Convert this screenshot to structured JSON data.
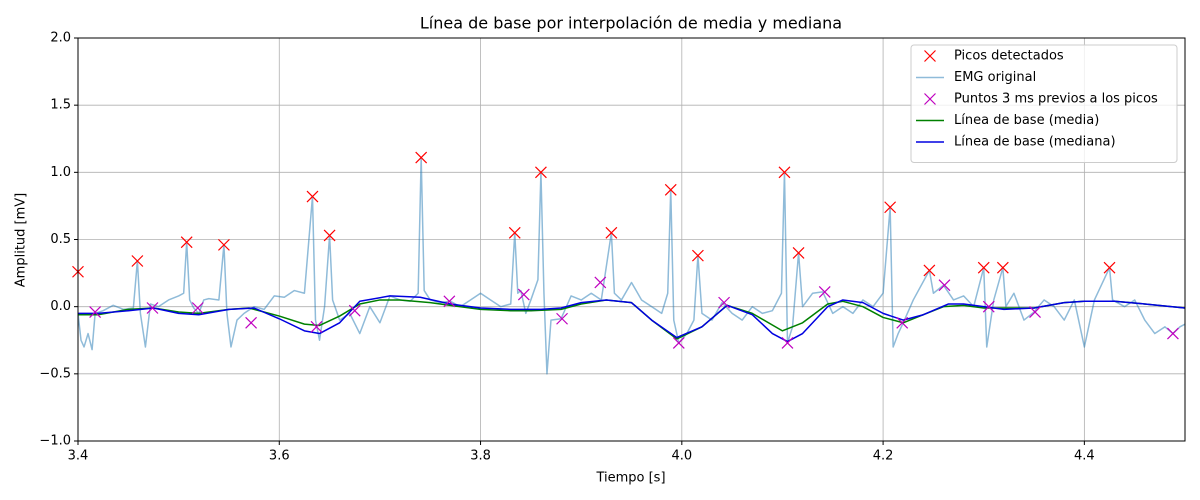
{
  "chart_data": {
    "type": "line",
    "title": "Línea de base por interpolación de media y mediana",
    "xlabel": "Tiempo [s]",
    "ylabel": "Amplitud [mV]",
    "xlim": [
      3.4,
      4.5
    ],
    "ylim": [
      -1.0,
      2.0
    ],
    "xticks": [
      3.4,
      3.6,
      3.8,
      {
        "value": 4.0,
        "label": "4.0"
      },
      4.2,
      4.4
    ],
    "yticks": [
      {
        "value": -1.0,
        "label": "−1.0"
      },
      {
        "value": -0.5,
        "label": "−0.5"
      },
      {
        "value": 0.0,
        "label": "0.0"
      },
      0.5,
      {
        "value": 1.0,
        "label": "1.0"
      },
      1.5,
      {
        "value": 2.0,
        "label": "2.0"
      }
    ],
    "grid": true,
    "legend": "upper right",
    "series": [
      {
        "name": "Picos detectados",
        "color": "#ff0000",
        "marker": "x",
        "linestyle": "none",
        "x": [
          3.4,
          3.459,
          3.508,
          3.545,
          3.633,
          3.65,
          3.741,
          3.834,
          3.86,
          3.93,
          3.989,
          4.016,
          4.102,
          4.116,
          4.207,
          4.246,
          4.3,
          4.319,
          4.425
        ],
        "values": [
          0.26,
          0.34,
          0.48,
          0.46,
          0.82,
          0.53,
          1.11,
          0.55,
          1.0,
          0.55,
          0.87,
          0.38,
          1.0,
          0.4,
          0.74,
          0.27,
          0.29,
          0.29,
          0.29
        ]
      },
      {
        "name": "EMG original",
        "color": "#1f77b4",
        "alpha": 0.5,
        "marker": "none",
        "linestyle": "solid",
        "x": [
          3.4,
          3.403,
          3.406,
          3.41,
          3.414,
          3.417,
          3.425,
          3.435,
          3.445,
          3.455,
          3.459,
          3.462,
          3.467,
          3.472,
          3.48,
          3.49,
          3.5,
          3.505,
          3.508,
          3.511,
          3.515,
          3.52,
          3.525,
          3.53,
          3.54,
          3.545,
          3.548,
          3.552,
          3.558,
          3.565,
          3.575,
          3.585,
          3.595,
          3.605,
          3.615,
          3.625,
          3.633,
          3.636,
          3.64,
          3.645,
          3.65,
          3.653,
          3.66,
          3.67,
          3.68,
          3.69,
          3.7,
          3.71,
          3.72,
          3.73,
          3.738,
          3.741,
          3.744,
          3.75,
          3.76,
          3.77,
          3.78,
          3.79,
          3.8,
          3.81,
          3.82,
          3.83,
          3.834,
          3.837,
          3.84,
          3.845,
          3.85,
          3.857,
          3.86,
          3.863,
          3.866,
          3.87,
          3.88,
          3.89,
          3.9,
          3.91,
          3.92,
          3.93,
          3.933,
          3.94,
          3.95,
          3.96,
          3.97,
          3.98,
          3.986,
          3.989,
          3.992,
          3.997,
          4.005,
          4.012,
          4.016,
          4.02,
          4.03,
          4.04,
          4.05,
          4.06,
          4.07,
          4.08,
          4.09,
          4.099,
          4.102,
          4.105,
          4.11,
          4.116,
          4.12,
          4.13,
          4.14,
          4.15,
          4.16,
          4.17,
          4.18,
          4.19,
          4.2,
          4.207,
          4.21,
          4.215,
          4.22,
          4.23,
          4.246,
          4.25,
          4.26,
          4.27,
          4.28,
          4.29,
          4.3,
          4.303,
          4.31,
          4.319,
          4.322,
          4.33,
          4.34,
          4.35,
          4.36,
          4.37,
          4.38,
          4.39,
          4.4,
          4.41,
          4.425,
          4.428,
          4.44,
          4.45,
          4.46,
          4.47,
          4.48,
          4.488,
          4.495,
          4.5
        ],
        "values": [
          -0.05,
          -0.25,
          -0.3,
          -0.2,
          -0.32,
          -0.05,
          -0.03,
          0.01,
          -0.02,
          -0.01,
          0.34,
          -0.05,
          -0.3,
          0.02,
          0.0,
          0.05,
          0.08,
          0.1,
          0.48,
          0.05,
          -0.01,
          -0.05,
          0.05,
          0.06,
          0.05,
          0.46,
          -0.05,
          -0.3,
          -0.1,
          -0.05,
          0.0,
          -0.02,
          0.08,
          0.07,
          0.12,
          0.1,
          0.82,
          -0.1,
          -0.25,
          0.0,
          0.53,
          0.05,
          -0.1,
          -0.05,
          -0.2,
          0.0,
          -0.12,
          0.08,
          0.05,
          0.04,
          0.1,
          1.11,
          0.12,
          0.05,
          0.03,
          0.04,
          0.0,
          0.05,
          0.1,
          0.05,
          0.0,
          0.02,
          0.55,
          0.1,
          0.12,
          -0.05,
          0.05,
          0.2,
          1.0,
          0.1,
          -0.5,
          -0.1,
          -0.09,
          0.08,
          0.05,
          0.1,
          0.05,
          0.55,
          0.1,
          0.05,
          0.18,
          0.05,
          0.0,
          -0.05,
          0.1,
          0.87,
          -0.1,
          -0.27,
          -0.2,
          -0.1,
          0.38,
          -0.05,
          -0.1,
          0.03,
          -0.05,
          -0.1,
          0.0,
          -0.05,
          -0.03,
          0.1,
          1.0,
          -0.27,
          -0.15,
          0.4,
          0.0,
          0.1,
          0.11,
          -0.05,
          0.0,
          -0.05,
          0.05,
          0.0,
          0.1,
          0.74,
          -0.3,
          -0.2,
          -0.12,
          0.05,
          0.27,
          0.1,
          0.16,
          0.05,
          0.08,
          0.0,
          0.29,
          -0.3,
          0.05,
          0.29,
          0.0,
          0.1,
          -0.1,
          -0.04,
          0.05,
          0.0,
          -0.1,
          0.05,
          -0.3,
          0.05,
          0.29,
          0.05,
          0.0,
          0.05,
          -0.1,
          -0.2,
          -0.15,
          -0.2,
          -0.15,
          -0.13
        ]
      },
      {
        "name": "Puntos 3 ms previos a los picos",
        "color": "#bf00bf",
        "marker": "x",
        "linestyle": "none",
        "x": [
          3.417,
          3.474,
          3.519,
          3.572,
          3.637,
          3.675,
          3.769,
          3.843,
          3.881,
          3.919,
          3.997,
          4.042,
          4.105,
          4.142,
          4.219,
          4.261,
          4.305,
          4.351,
          4.488
        ],
        "values": [
          -0.04,
          -0.01,
          -0.01,
          -0.12,
          -0.15,
          -0.03,
          0.04,
          0.09,
          -0.09,
          0.18,
          -0.27,
          0.03,
          -0.27,
          0.11,
          -0.12,
          0.16,
          0.0,
          -0.04,
          -0.2
        ]
      },
      {
        "name": "Línea de base (media)",
        "color": "#008000",
        "marker": "none",
        "linestyle": "solid",
        "x": [
          3.4,
          3.42,
          3.45,
          3.475,
          3.5,
          3.52,
          3.55,
          3.57,
          3.6,
          3.625,
          3.64,
          3.66,
          3.68,
          3.7,
          3.72,
          3.75,
          3.77,
          3.8,
          3.83,
          3.85,
          3.88,
          3.9,
          3.925,
          3.95,
          3.97,
          3.995,
          4.02,
          4.045,
          4.07,
          4.1,
          4.12,
          4.145,
          4.16,
          4.18,
          4.2,
          4.22,
          4.24,
          4.26,
          4.28,
          4.3,
          4.32,
          4.35,
          4.38,
          4.4,
          4.43,
          4.46,
          4.5
        ],
        "values": [
          -0.06,
          -0.06,
          -0.02,
          -0.01,
          -0.04,
          -0.05,
          -0.02,
          -0.01,
          -0.07,
          -0.13,
          -0.14,
          -0.07,
          0.02,
          0.05,
          0.05,
          0.03,
          0.01,
          -0.02,
          -0.03,
          -0.03,
          -0.02,
          0.02,
          0.05,
          0.03,
          -0.1,
          -0.24,
          -0.15,
          0.01,
          -0.05,
          -0.18,
          -0.12,
          0.02,
          0.04,
          0.0,
          -0.08,
          -0.12,
          -0.06,
          0.0,
          0.01,
          -0.01,
          -0.01,
          -0.01,
          0.03,
          0.04,
          0.04,
          0.02,
          -0.01
        ]
      },
      {
        "name": "Línea de base (mediana)",
        "color": "#0000e0",
        "marker": "none",
        "linestyle": "solid",
        "x": [
          3.4,
          3.42,
          3.45,
          3.475,
          3.5,
          3.52,
          3.55,
          3.575,
          3.6,
          3.625,
          3.64,
          3.66,
          3.68,
          3.71,
          3.74,
          3.77,
          3.8,
          3.83,
          3.86,
          3.88,
          3.9,
          3.925,
          3.95,
          3.97,
          3.995,
          4.02,
          4.045,
          4.07,
          4.09,
          4.105,
          4.12,
          4.145,
          4.16,
          4.18,
          4.2,
          4.22,
          4.24,
          4.265,
          4.28,
          4.3,
          4.32,
          4.35,
          4.38,
          4.4,
          4.43,
          4.46,
          4.5
        ],
        "values": [
          -0.05,
          -0.05,
          -0.03,
          -0.01,
          -0.05,
          -0.06,
          -0.02,
          -0.01,
          -0.09,
          -0.18,
          -0.2,
          -0.12,
          0.04,
          0.08,
          0.07,
          0.02,
          -0.01,
          -0.02,
          -0.02,
          -0.01,
          0.03,
          0.05,
          0.03,
          -0.1,
          -0.23,
          -0.15,
          0.01,
          -0.06,
          -0.2,
          -0.26,
          -0.2,
          0.0,
          0.05,
          0.03,
          -0.05,
          -0.1,
          -0.06,
          0.02,
          0.02,
          0.0,
          -0.02,
          -0.01,
          0.03,
          0.04,
          0.04,
          0.02,
          -0.01
        ]
      }
    ]
  }
}
